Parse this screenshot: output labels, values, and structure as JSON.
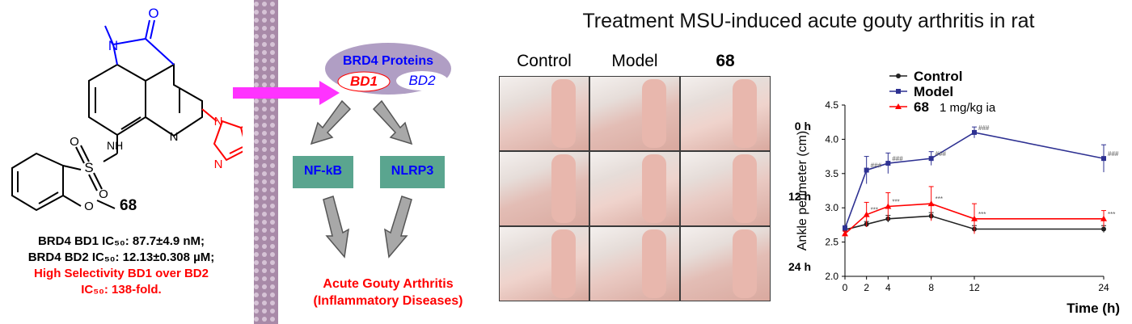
{
  "compound": {
    "atoms": {
      "N": "N",
      "O": "O",
      "S": "S",
      "NH": "NH"
    },
    "name": "68",
    "ic50_bd1": "BRD4 BD1 IC₅₀: 87.7±4.9 nM;",
    "ic50_bd2": "BRD4 BD2 IC₅₀: 12.13±0.308 µM;",
    "selectivity_line1": "High Selectivity BD1 over BD2",
    "selectivity_line2": "IC₅₀: 138-fold."
  },
  "pathway": {
    "protein_label": "BRD4 Proteins",
    "bd1_label": "BD1",
    "bd2_label": "BD2",
    "nfkb_label": "NF-kB",
    "nlrp3_label": "NLRP3",
    "outcome_line1": "Acute Gouty Arthritis",
    "outcome_line2": "(Inflammatory Diseases)"
  },
  "experiment": {
    "title": "Treatment  MSU-induced acute gouty arthritis in rat",
    "group_labels": [
      "Control",
      "Model",
      "68"
    ],
    "time_labels": [
      "0 h",
      "12 h",
      "24 h"
    ]
  },
  "chart_data": {
    "type": "line",
    "x": [
      0,
      2,
      4,
      8,
      12,
      24
    ],
    "xlabel": "Time (h)",
    "ylabel": "Ankle perimeter (cm)",
    "xlim": [
      0,
      24
    ],
    "ylim": [
      2.0,
      4.5
    ],
    "yticks": [
      "2.0",
      "2.5",
      "3.0",
      "3.5",
      "4.0",
      "4.5"
    ],
    "xticks": [
      "0",
      "2",
      "4",
      "8",
      "12",
      "24"
    ],
    "legend_placement": "top-left",
    "series": [
      {
        "name": "Control",
        "color": "#222222",
        "values": [
          2.68,
          2.76,
          2.84,
          2.88,
          2.69,
          2.69
        ],
        "errors": [
          0.04,
          0.04,
          0.05,
          0.05,
          0.05,
          0.05
        ],
        "annotations": []
      },
      {
        "name": "Model",
        "color": "#2e3192",
        "values": [
          2.7,
          3.55,
          3.65,
          3.72,
          4.1,
          3.72
        ],
        "errors": [
          0.04,
          0.2,
          0.15,
          0.1,
          0.08,
          0.2
        ],
        "annotations": [
          "",
          "###",
          "###",
          "###",
          "###",
          "###"
        ]
      },
      {
        "name": "68",
        "color": "#ff0000",
        "values": [
          2.62,
          2.9,
          3.02,
          3.06,
          2.84,
          2.84
        ],
        "errors": [
          0.04,
          0.18,
          0.2,
          0.25,
          0.22,
          0.12
        ],
        "annotations": [
          "",
          "***",
          "***",
          "***",
          "***",
          "***"
        ]
      }
    ],
    "legend_notes": [
      "",
      "",
      "1 mg/kg  ia"
    ]
  }
}
